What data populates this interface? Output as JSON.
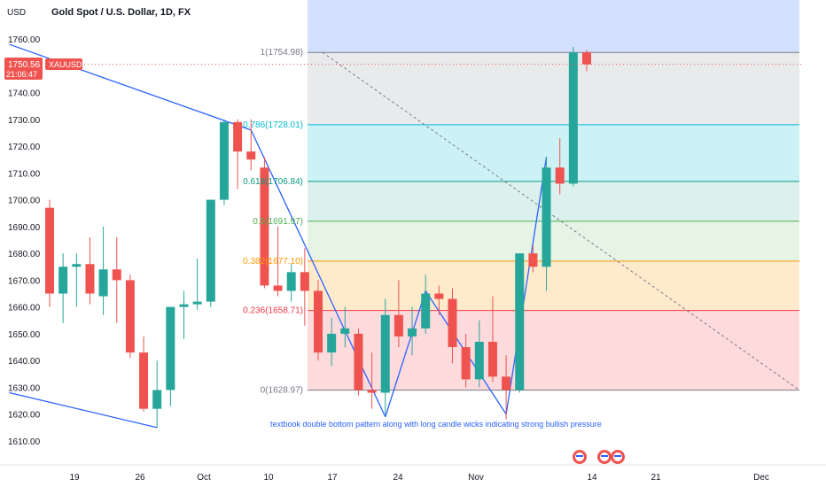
{
  "header": {
    "symbol_title": "Gold Spot / U.S. Dollar, 1D, FX",
    "axis_unit": "USD"
  },
  "price_badge": {
    "price": "1750.56",
    "countdown": "21:06:47",
    "ticker": "XAUUSD",
    "color": "#ef5350"
  },
  "colors": {
    "up": "#26a69a",
    "down": "#ef5350",
    "trendline": "#2962ff"
  },
  "annotation": "textbook double bottom pattern along with long candle wicks indicating strong bullish pressure",
  "fib_levels": [
    {
      "label": "1(1754.98)",
      "price": 1754.98,
      "color": "#787b86",
      "band": "rgba(120,123,134,0.16)"
    },
    {
      "label": "0.786(1728.01)",
      "price": 1728.01,
      "color": "#00bcd4",
      "band": "rgba(0,188,212,0.20)"
    },
    {
      "label": "0.618(1706.84)",
      "price": 1706.84,
      "color": "#089981",
      "band": "rgba(8,153,129,0.14)"
    },
    {
      "label": "0.5(1691.97)",
      "price": 1691.97,
      "color": "#4caf50",
      "band": "rgba(76,175,80,0.14)"
    },
    {
      "label": "0.382(1677.10)",
      "price": 1677.1,
      "color": "#ff9800",
      "band": "rgba(255,152,0,0.20)"
    },
    {
      "label": "0.236(1658.71)",
      "price": 1658.71,
      "color": "#f23645",
      "band": "rgba(242,54,69,0.18)"
    },
    {
      "label": "0(1628.97)",
      "price": 1628.97,
      "color": "#787b86",
      "band": null
    }
  ],
  "fib_top_band_color": "rgba(41,98,255,0.20)",
  "fib_top_price": 1775,
  "chart_data": {
    "type": "candlestick",
    "title": "Gold Spot / U.S. Dollar, 1D, FX",
    "ylabel": "USD",
    "ylim": [
      1605,
      1775
    ],
    "y_ticks": [
      1610,
      1620,
      1630,
      1640,
      1650,
      1660,
      1670,
      1680,
      1690,
      1700,
      1710,
      1720,
      1730,
      1740,
      1750,
      1760
    ],
    "x_ticks": [
      "19",
      "26",
      "Oct",
      "10",
      "17",
      "24",
      "Nov",
      "14",
      "21",
      "Dec"
    ],
    "candles": [
      {
        "date": "2022-09-16",
        "o": 1697,
        "h": 1700,
        "l": 1660,
        "c": 1665
      },
      {
        "date": "2022-09-19",
        "o": 1665,
        "h": 1680,
        "l": 1654,
        "c": 1675
      },
      {
        "date": "2022-09-20",
        "o": 1675,
        "h": 1680,
        "l": 1660,
        "c": 1676
      },
      {
        "date": "2022-09-21",
        "o": 1676,
        "h": 1686,
        "l": 1661,
        "c": 1665
      },
      {
        "date": "2022-09-22",
        "o": 1664,
        "h": 1690,
        "l": 1657,
        "c": 1674
      },
      {
        "date": "2022-09-23",
        "o": 1674,
        "h": 1686,
        "l": 1654,
        "c": 1670
      },
      {
        "date": "2022-09-26",
        "o": 1670,
        "h": 1672,
        "l": 1641,
        "c": 1643
      },
      {
        "date": "2022-09-27",
        "o": 1643,
        "h": 1649,
        "l": 1621,
        "c": 1622
      },
      {
        "date": "2022-09-28",
        "o": 1622,
        "h": 1640,
        "l": 1615,
        "c": 1629
      },
      {
        "date": "2022-09-29",
        "o": 1629,
        "h": 1660,
        "l": 1623,
        "c": 1660
      },
      {
        "date": "2022-09-30",
        "o": 1660,
        "h": 1666,
        "l": 1648,
        "c": 1661
      },
      {
        "date": "2022-10-03",
        "o": 1661,
        "h": 1678,
        "l": 1659,
        "c": 1662
      },
      {
        "date": "2022-10-04",
        "o": 1662,
        "h": 1700,
        "l": 1660,
        "c": 1700
      },
      {
        "date": "2022-10-05",
        "o": 1700,
        "h": 1730,
        "l": 1698,
        "c": 1729
      },
      {
        "date": "2022-10-06",
        "o": 1729,
        "h": 1730,
        "l": 1704,
        "c": 1718
      },
      {
        "date": "2022-10-07",
        "o": 1718,
        "h": 1730,
        "l": 1711,
        "c": 1715
      },
      {
        "date": "2022-10-10",
        "o": 1712,
        "h": 1716,
        "l": 1667,
        "c": 1668
      },
      {
        "date": "2022-10-11",
        "o": 1668,
        "h": 1690,
        "l": 1664,
        "c": 1666
      },
      {
        "date": "2022-10-12",
        "o": 1666,
        "h": 1676,
        "l": 1662,
        "c": 1673
      },
      {
        "date": "2022-10-13",
        "o": 1673,
        "h": 1682,
        "l": 1653,
        "c": 1666
      },
      {
        "date": "2022-10-14",
        "o": 1666,
        "h": 1670,
        "l": 1640,
        "c": 1643
      },
      {
        "date": "2022-10-17",
        "o": 1643,
        "h": 1656,
        "l": 1638,
        "c": 1650
      },
      {
        "date": "2022-10-18",
        "o": 1650,
        "h": 1660,
        "l": 1645,
        "c": 1652
      },
      {
        "date": "2022-10-19",
        "o": 1650,
        "h": 1652,
        "l": 1627,
        "c": 1629
      },
      {
        "date": "2022-10-20",
        "o": 1629,
        "h": 1643,
        "l": 1622,
        "c": 1628
      },
      {
        "date": "2022-10-21",
        "o": 1628,
        "h": 1663,
        "l": 1620,
        "c": 1657
      },
      {
        "date": "2022-10-24",
        "o": 1657,
        "h": 1670,
        "l": 1645,
        "c": 1649
      },
      {
        "date": "2022-10-25",
        "o": 1649,
        "h": 1660,
        "l": 1642,
        "c": 1652
      },
      {
        "date": "2022-10-26",
        "o": 1652,
        "h": 1672,
        "l": 1650,
        "c": 1665
      },
      {
        "date": "2022-10-27",
        "o": 1665,
        "h": 1668,
        "l": 1657,
        "c": 1663
      },
      {
        "date": "2022-10-28",
        "o": 1663,
        "h": 1667,
        "l": 1639,
        "c": 1645
      },
      {
        "date": "2022-10-31",
        "o": 1645,
        "h": 1650,
        "l": 1630,
        "c": 1633
      },
      {
        "date": "2022-11-01",
        "o": 1633,
        "h": 1655,
        "l": 1630,
        "c": 1647
      },
      {
        "date": "2022-11-02",
        "o": 1647,
        "h": 1664,
        "l": 1632,
        "c": 1634
      },
      {
        "date": "2022-11-03",
        "o": 1634,
        "h": 1642,
        "l": 1618,
        "c": 1629
      },
      {
        "date": "2022-11-04",
        "o": 1629,
        "h": 1680,
        "l": 1628,
        "c": 1680
      },
      {
        "date": "2022-11-07",
        "o": 1680,
        "h": 1683,
        "l": 1673,
        "c": 1675
      },
      {
        "date": "2022-11-08",
        "o": 1675,
        "h": 1716,
        "l": 1666,
        "c": 1712
      },
      {
        "date": "2022-11-09",
        "o": 1712,
        "h": 1723,
        "l": 1702,
        "c": 1706
      },
      {
        "date": "2022-11-10",
        "o": 1706,
        "h": 1757,
        "l": 1705,
        "c": 1755
      },
      {
        "date": "2022-11-11",
        "o": 1755,
        "h": 1756,
        "l": 1748,
        "c": 1750.56
      }
    ],
    "trendlines": [
      {
        "from": [
          "2022-09-13",
          1758
        ],
        "to": [
          "2022-10-07",
          1726
        ]
      },
      {
        "from": [
          "2022-09-13",
          1628
        ],
        "to": [
          "2022-09-28",
          1615
        ]
      },
      {
        "from": [
          "2022-10-07",
          1726
        ],
        "to": [
          "2022-10-21",
          1619
        ]
      },
      {
        "from": [
          "2022-10-21",
          1619
        ],
        "to": [
          "2022-10-26",
          1666
        ]
      },
      {
        "from": [
          "2022-10-26",
          1666
        ],
        "to": [
          "2022-11-03",
          1620
        ]
      },
      {
        "from": [
          "2022-11-03",
          1620
        ],
        "to": [
          "2022-11-08",
          1716
        ]
      }
    ]
  }
}
